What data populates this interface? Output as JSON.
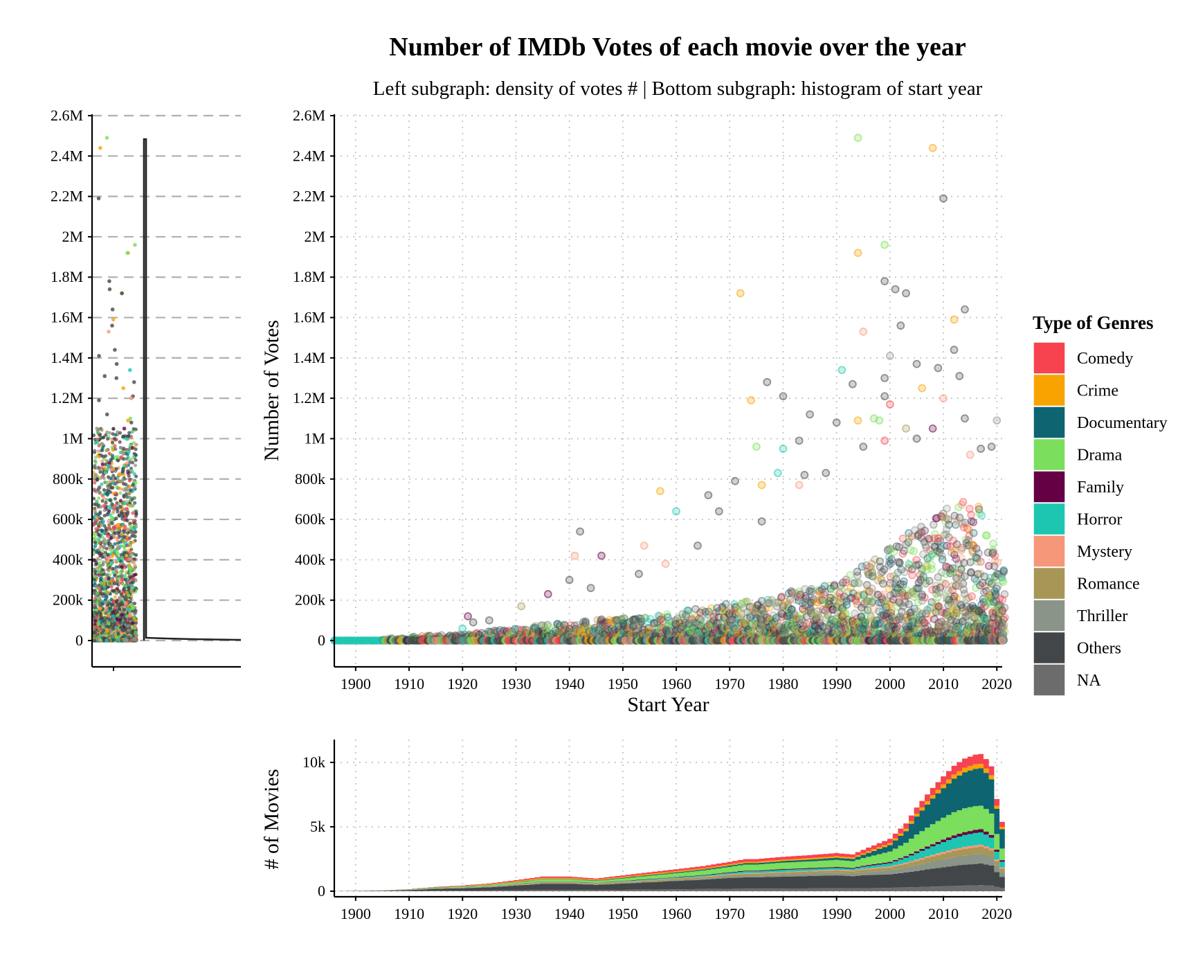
{
  "title": "Number of IMDb Votes of each movie over the year",
  "subtitle": "Left subgraph: density of votes # | Bottom subgraph: histogram of start year",
  "legend": {
    "title": "Type of Genres",
    "items": [
      {
        "name": "Comedy",
        "color": "#f7434f"
      },
      {
        "name": "Crime",
        "color": "#f9a300"
      },
      {
        "name": "Documentary",
        "color": "#0e6470"
      },
      {
        "name": "Drama",
        "color": "#7bde5c"
      },
      {
        "name": "Family",
        "color": "#650045"
      },
      {
        "name": "Horror",
        "color": "#1cc6b1"
      },
      {
        "name": "Mystery",
        "color": "#f7977a"
      },
      {
        "name": "Romance",
        "color": "#a89656"
      },
      {
        "name": "Thriller",
        "color": "#8a9488"
      },
      {
        "name": "Others",
        "color": "#434648"
      },
      {
        "name": "NA",
        "color": "#6c6c6c"
      }
    ]
  },
  "chart_data": [
    {
      "id": "left-density",
      "type": "scatter",
      "description_of_series": "jittered strip of votes plus density curve",
      "ylim": [
        0,
        2600000
      ],
      "y_ticks": [
        {
          "value": 0,
          "label": "0"
        },
        {
          "value": 200000,
          "label": "200k"
        },
        {
          "value": 400000,
          "label": "400k"
        },
        {
          "value": 600000,
          "label": "600k"
        },
        {
          "value": 800000,
          "label": "800k"
        },
        {
          "value": 1000000,
          "label": "1M"
        },
        {
          "value": 1200000,
          "label": "1.2M"
        },
        {
          "value": 1400000,
          "label": "1.4M"
        },
        {
          "value": 1600000,
          "label": "1.6M"
        },
        {
          "value": 1800000,
          "label": "1.8M"
        },
        {
          "value": 2000000,
          "label": "2M"
        },
        {
          "value": 2200000,
          "label": "2.2M"
        },
        {
          "value": 2400000,
          "label": "2.4M"
        },
        {
          "value": 2600000,
          "label": "2.6M"
        }
      ],
      "grid": "dashed horizontal",
      "density_peak_at_votes": 0
    },
    {
      "id": "main-scatter",
      "type": "scatter",
      "xlabel": "Start Year",
      "ylabel": "Number of Votes",
      "xlim": [
        1896,
        2021
      ],
      "ylim": [
        0,
        2600000
      ],
      "x_ticks": [
        1900,
        1910,
        1920,
        1930,
        1940,
        1950,
        1960,
        1970,
        1980,
        1990,
        2000,
        2010,
        2020
      ],
      "y_ticks": [
        {
          "value": 0,
          "label": "0"
        },
        {
          "value": 200000,
          "label": "200k"
        },
        {
          "value": 400000,
          "label": "400k"
        },
        {
          "value": 600000,
          "label": "600k"
        },
        {
          "value": 800000,
          "label": "800k"
        },
        {
          "value": 1000000,
          "label": "1M"
        },
        {
          "value": 1200000,
          "label": "1.2M"
        },
        {
          "value": 1400000,
          "label": "1.4M"
        },
        {
          "value": 1600000,
          "label": "1.6M"
        },
        {
          "value": 1800000,
          "label": "1.8M"
        },
        {
          "value": 2000000,
          "label": "2M"
        },
        {
          "value": 2200000,
          "label": "2.2M"
        },
        {
          "value": 2400000,
          "label": "2.4M"
        },
        {
          "value": 2600000,
          "label": "2.6M"
        }
      ],
      "grid": "dotted",
      "points": [
        {
          "x": 1994,
          "y": 2490000,
          "genre": "Drama"
        },
        {
          "x": 2008,
          "y": 2440000,
          "genre": "Crime"
        },
        {
          "x": 2010,
          "y": 2190000,
          "genre": "Others"
        },
        {
          "x": 1994,
          "y": 1920000,
          "genre": "Crime"
        },
        {
          "x": 1999,
          "y": 1960000,
          "genre": "Drama"
        },
        {
          "x": 1999,
          "y": 1780000,
          "genre": "Others"
        },
        {
          "x": 2001,
          "y": 1740000,
          "genre": "Others"
        },
        {
          "x": 2003,
          "y": 1720000,
          "genre": "Others"
        },
        {
          "x": 1972,
          "y": 1720000,
          "genre": "Crime"
        },
        {
          "x": 2012,
          "y": 1590000,
          "genre": "Crime"
        },
        {
          "x": 2014,
          "y": 1640000,
          "genre": "Others"
        },
        {
          "x": 2002,
          "y": 1560000,
          "genre": "Others"
        },
        {
          "x": 1995,
          "y": 1530000,
          "genre": "Mystery"
        },
        {
          "x": 2012,
          "y": 1440000,
          "genre": "Others"
        },
        {
          "x": 2000,
          "y": 1410000,
          "genre": "Thriller"
        },
        {
          "x": 2005,
          "y": 1370000,
          "genre": "Others"
        },
        {
          "x": 2009,
          "y": 1350000,
          "genre": "Others"
        },
        {
          "x": 1991,
          "y": 1340000,
          "genre": "Horror"
        },
        {
          "x": 2013,
          "y": 1310000,
          "genre": "Others"
        },
        {
          "x": 1999,
          "y": 1300000,
          "genre": "Others"
        },
        {
          "x": 1993,
          "y": 1270000,
          "genre": "Others"
        },
        {
          "x": 1977,
          "y": 1280000,
          "genre": "Others"
        },
        {
          "x": 2006,
          "y": 1250000,
          "genre": "Crime"
        },
        {
          "x": 1980,
          "y": 1210000,
          "genre": "Others"
        },
        {
          "x": 1974,
          "y": 1190000,
          "genre": "Crime"
        },
        {
          "x": 2010,
          "y": 1200000,
          "genre": "Mystery"
        },
        {
          "x": 1999,
          "y": 1210000,
          "genre": "Others"
        },
        {
          "x": 2000,
          "y": 1170000,
          "genre": "Comedy"
        },
        {
          "x": 1985,
          "y": 1120000,
          "genre": "Others"
        },
        {
          "x": 1994,
          "y": 1090000,
          "genre": "Crime"
        },
        {
          "x": 1997,
          "y": 1100000,
          "genre": "Drama"
        },
        {
          "x": 1998,
          "y": 1090000,
          "genre": "Drama"
        },
        {
          "x": 1990,
          "y": 1080000,
          "genre": "Others"
        },
        {
          "x": 2003,
          "y": 1050000,
          "genre": "Romance"
        },
        {
          "x": 2008,
          "y": 1050000,
          "genre": "Family"
        },
        {
          "x": 2014,
          "y": 1100000,
          "genre": "Others"
        },
        {
          "x": 2020,
          "y": 1090000,
          "genre": "Thriller"
        },
        {
          "x": 1975,
          "y": 960000,
          "genre": "Drama"
        },
        {
          "x": 1980,
          "y": 950000,
          "genre": "Horror"
        },
        {
          "x": 1983,
          "y": 990000,
          "genre": "Others"
        },
        {
          "x": 1995,
          "y": 960000,
          "genre": "Others"
        },
        {
          "x": 1999,
          "y": 990000,
          "genre": "Comedy"
        },
        {
          "x": 2005,
          "y": 1000000,
          "genre": "Others"
        },
        {
          "x": 2017,
          "y": 950000,
          "genre": "Others"
        },
        {
          "x": 2019,
          "y": 960000,
          "genre": "Others"
        },
        {
          "x": 2015,
          "y": 920000,
          "genre": "Mystery"
        },
        {
          "x": 1976,
          "y": 770000,
          "genre": "Crime"
        },
        {
          "x": 1979,
          "y": 830000,
          "genre": "Horror"
        },
        {
          "x": 1971,
          "y": 790000,
          "genre": "Others"
        },
        {
          "x": 1984,
          "y": 820000,
          "genre": "Others"
        },
        {
          "x": 1988,
          "y": 830000,
          "genre": "Others"
        },
        {
          "x": 1983,
          "y": 770000,
          "genre": "Mystery"
        },
        {
          "x": 1966,
          "y": 720000,
          "genre": "Others"
        },
        {
          "x": 1957,
          "y": 740000,
          "genre": "Crime"
        },
        {
          "x": 1960,
          "y": 640000,
          "genre": "Horror"
        },
        {
          "x": 1968,
          "y": 640000,
          "genre": "Others"
        },
        {
          "x": 1976,
          "y": 590000,
          "genre": "Others"
        },
        {
          "x": 1942,
          "y": 540000,
          "genre": "Others"
        },
        {
          "x": 1954,
          "y": 470000,
          "genre": "Mystery"
        },
        {
          "x": 1964,
          "y": 470000,
          "genre": "Others"
        },
        {
          "x": 1941,
          "y": 420000,
          "genre": "Mystery"
        },
        {
          "x": 1946,
          "y": 420000,
          "genre": "Family"
        },
        {
          "x": 1953,
          "y": 330000,
          "genre": "Others"
        },
        {
          "x": 1958,
          "y": 380000,
          "genre": "Mystery"
        },
        {
          "x": 1940,
          "y": 300000,
          "genre": "Others"
        },
        {
          "x": 1944,
          "y": 260000,
          "genre": "Others"
        },
        {
          "x": 1936,
          "y": 230000,
          "genre": "Family"
        },
        {
          "x": 1921,
          "y": 120000,
          "genre": "Family"
        },
        {
          "x": 1922,
          "y": 90000,
          "genre": "Others"
        },
        {
          "x": 1925,
          "y": 100000,
          "genre": "Others"
        },
        {
          "x": 1931,
          "y": 170000,
          "genre": "Romance"
        },
        {
          "x": 1920,
          "y": 60000,
          "genre": "Horror"
        }
      ],
      "dense_band": {
        "x_from": 1915,
        "x_to": 2021,
        "y_typical_max_by_decade": {
          "1920": 40000,
          "1940": 80000,
          "1960": 150000,
          "1980": 250000,
          "2000": 450000,
          "2015": 700000
        }
      }
    },
    {
      "id": "bottom-histogram",
      "type": "area",
      "stacked": true,
      "xlabel": "",
      "ylabel": "# of Movies",
      "xlim": [
        1896,
        2021
      ],
      "ylim": [
        0,
        11700
      ],
      "x_ticks": [
        1900,
        1910,
        1920,
        1930,
        1940,
        1950,
        1960,
        1970,
        1980,
        1990,
        2000,
        2010,
        2020
      ],
      "y_ticks": [
        {
          "value": 0,
          "label": "0"
        },
        {
          "value": 5000,
          "label": "5k"
        },
        {
          "value": 10000,
          "label": "10k"
        }
      ],
      "grid": "dotted",
      "x": [
        1896,
        1900,
        1905,
        1910,
        1915,
        1920,
        1925,
        1930,
        1935,
        1940,
        1945,
        1950,
        1955,
        1960,
        1965,
        1970,
        1973,
        1975,
        1980,
        1985,
        1990,
        1993,
        1995,
        2000,
        2003,
        2005,
        2008,
        2010,
        2012,
        2014,
        2016,
        2017,
        2018,
        2019,
        2020,
        2021
      ],
      "series": [
        {
          "name": "NA",
          "values": [
            0,
            0,
            5,
            20,
            40,
            50,
            60,
            80,
            100,
            100,
            90,
            110,
            130,
            150,
            170,
            190,
            200,
            200,
            210,
            220,
            230,
            220,
            240,
            260,
            300,
            320,
            360,
            380,
            410,
            440,
            460,
            470,
            460,
            440,
            330,
            250
          ]
        },
        {
          "name": "Others",
          "values": [
            5,
            15,
            30,
            70,
            150,
            180,
            250,
            350,
            480,
            480,
            400,
            480,
            560,
            650,
            720,
            830,
            880,
            880,
            920,
            960,
            1000,
            950,
            1000,
            1050,
            1150,
            1250,
            1400,
            1480,
            1560,
            1620,
            1660,
            1680,
            1620,
            1550,
            1150,
            850
          ]
        },
        {
          "name": "Thriller",
          "values": [
            0,
            0,
            2,
            5,
            10,
            15,
            20,
            30,
            40,
            40,
            40,
            50,
            60,
            70,
            90,
            110,
            130,
            130,
            160,
            180,
            200,
            200,
            230,
            300,
            380,
            450,
            550,
            620,
            680,
            720,
            750,
            760,
            740,
            700,
            520,
            400
          ]
        },
        {
          "name": "Romance",
          "values": [
            0,
            2,
            4,
            10,
            20,
            30,
            40,
            55,
            75,
            75,
            65,
            80,
            90,
            100,
            120,
            140,
            150,
            150,
            160,
            170,
            180,
            180,
            200,
            240,
            290,
            330,
            390,
            430,
            470,
            500,
            520,
            530,
            510,
            480,
            350,
            260
          ]
        },
        {
          "name": "Mystery",
          "values": [
            0,
            0,
            1,
            3,
            5,
            8,
            10,
            15,
            20,
            20,
            20,
            20,
            25,
            30,
            35,
            40,
            45,
            45,
            50,
            55,
            60,
            60,
            65,
            80,
            95,
            110,
            130,
            145,
            155,
            165,
            170,
            170,
            165,
            155,
            115,
            85
          ]
        },
        {
          "name": "Horror",
          "values": [
            0,
            0,
            2,
            5,
            8,
            10,
            12,
            20,
            25,
            25,
            25,
            35,
            50,
            60,
            80,
            110,
            140,
            140,
            160,
            150,
            140,
            130,
            160,
            250,
            380,
            500,
            650,
            760,
            850,
            920,
            960,
            960,
            900,
            830,
            600,
            450
          ]
        },
        {
          "name": "Family",
          "values": [
            0,
            0,
            1,
            3,
            5,
            8,
            10,
            15,
            20,
            20,
            20,
            25,
            30,
            35,
            40,
            50,
            55,
            55,
            60,
            65,
            70,
            70,
            80,
            100,
            120,
            140,
            170,
            190,
            210,
            225,
            235,
            240,
            230,
            215,
            160,
            120
          ]
        },
        {
          "name": "Drama",
          "values": [
            0,
            2,
            5,
            15,
            40,
            60,
            80,
            120,
            160,
            160,
            140,
            190,
            250,
            300,
            350,
            420,
            470,
            470,
            500,
            520,
            550,
            520,
            600,
            800,
            1050,
            1300,
            1550,
            1700,
            1800,
            1850,
            1850,
            1830,
            1760,
            1660,
            1220,
            900
          ]
        },
        {
          "name": "Documentary",
          "values": [
            5,
            10,
            10,
            15,
            20,
            20,
            20,
            25,
            30,
            30,
            40,
            50,
            60,
            70,
            80,
            100,
            110,
            110,
            120,
            140,
            170,
            180,
            250,
            500,
            900,
            1400,
            2000,
            2300,
            2600,
            2800,
            2900,
            2900,
            2800,
            2650,
            1950,
            1500
          ]
        },
        {
          "name": "Crime",
          "values": [
            0,
            1,
            3,
            8,
            15,
            25,
            40,
            60,
            80,
            80,
            60,
            80,
            90,
            90,
            95,
            100,
            105,
            105,
            110,
            115,
            120,
            115,
            130,
            160,
            190,
            220,
            260,
            290,
            320,
            340,
            350,
            350,
            340,
            320,
            240,
            180
          ]
        },
        {
          "name": "Comedy",
          "values": [
            0,
            1,
            3,
            10,
            25,
            40,
            60,
            90,
            110,
            110,
            90,
            110,
            130,
            150,
            170,
            190,
            210,
            210,
            220,
            230,
            240,
            230,
            260,
            330,
            410,
            480,
            560,
            620,
            680,
            720,
            750,
            760,
            740,
            700,
            520,
            390
          ]
        }
      ]
    }
  ]
}
